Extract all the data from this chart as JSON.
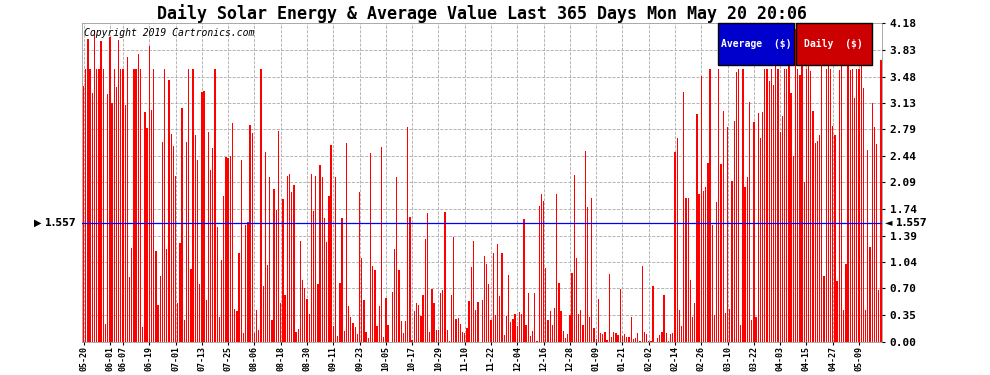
{
  "title": "Daily Solar Energy & Average Value Last 365 Days Mon May 20 20:06",
  "copyright": "Copyright 2019 Cartronics.com",
  "ylabel_right_ticks": [
    0.0,
    0.35,
    0.7,
    1.04,
    1.39,
    1.74,
    2.09,
    2.44,
    2.79,
    3.13,
    3.48,
    3.83,
    4.18
  ],
  "ymax": 4.18,
  "ymin": 0.0,
  "average_value": 1.557,
  "bar_color": "#FF0000",
  "average_line_color": "#0000FF",
  "background_color": "#FFFFFF",
  "grid_color": "#AAAAAA",
  "legend_avg_bg": "#0000CC",
  "legend_daily_bg": "#CC0000",
  "legend_text_color": "#FFFFFF",
  "title_fontsize": 12,
  "copyright_fontsize": 7,
  "num_bars": 365,
  "figsize": [
    9.9,
    3.75
  ],
  "dpi": 100,
  "x_tick_labels": [
    "05-20",
    "06-01",
    "06-07",
    "06-19",
    "07-01",
    "07-13",
    "07-25",
    "08-06",
    "08-18",
    "08-30",
    "09-11",
    "09-23",
    "10-05",
    "10-17",
    "10-29",
    "11-10",
    "11-22",
    "12-04",
    "12-16",
    "12-28",
    "01-09",
    "01-21",
    "02-02",
    "02-14",
    "02-26",
    "03-10",
    "03-22",
    "04-03",
    "04-15",
    "04-27",
    "05-09"
  ],
  "x_tick_positions_frac": [
    0,
    12,
    18,
    30,
    42,
    54,
    66,
    78,
    90,
    102,
    114,
    126,
    138,
    150,
    162,
    174,
    186,
    198,
    210,
    222,
    234,
    246,
    258,
    270,
    282,
    294,
    306,
    318,
    330,
    342,
    354
  ]
}
